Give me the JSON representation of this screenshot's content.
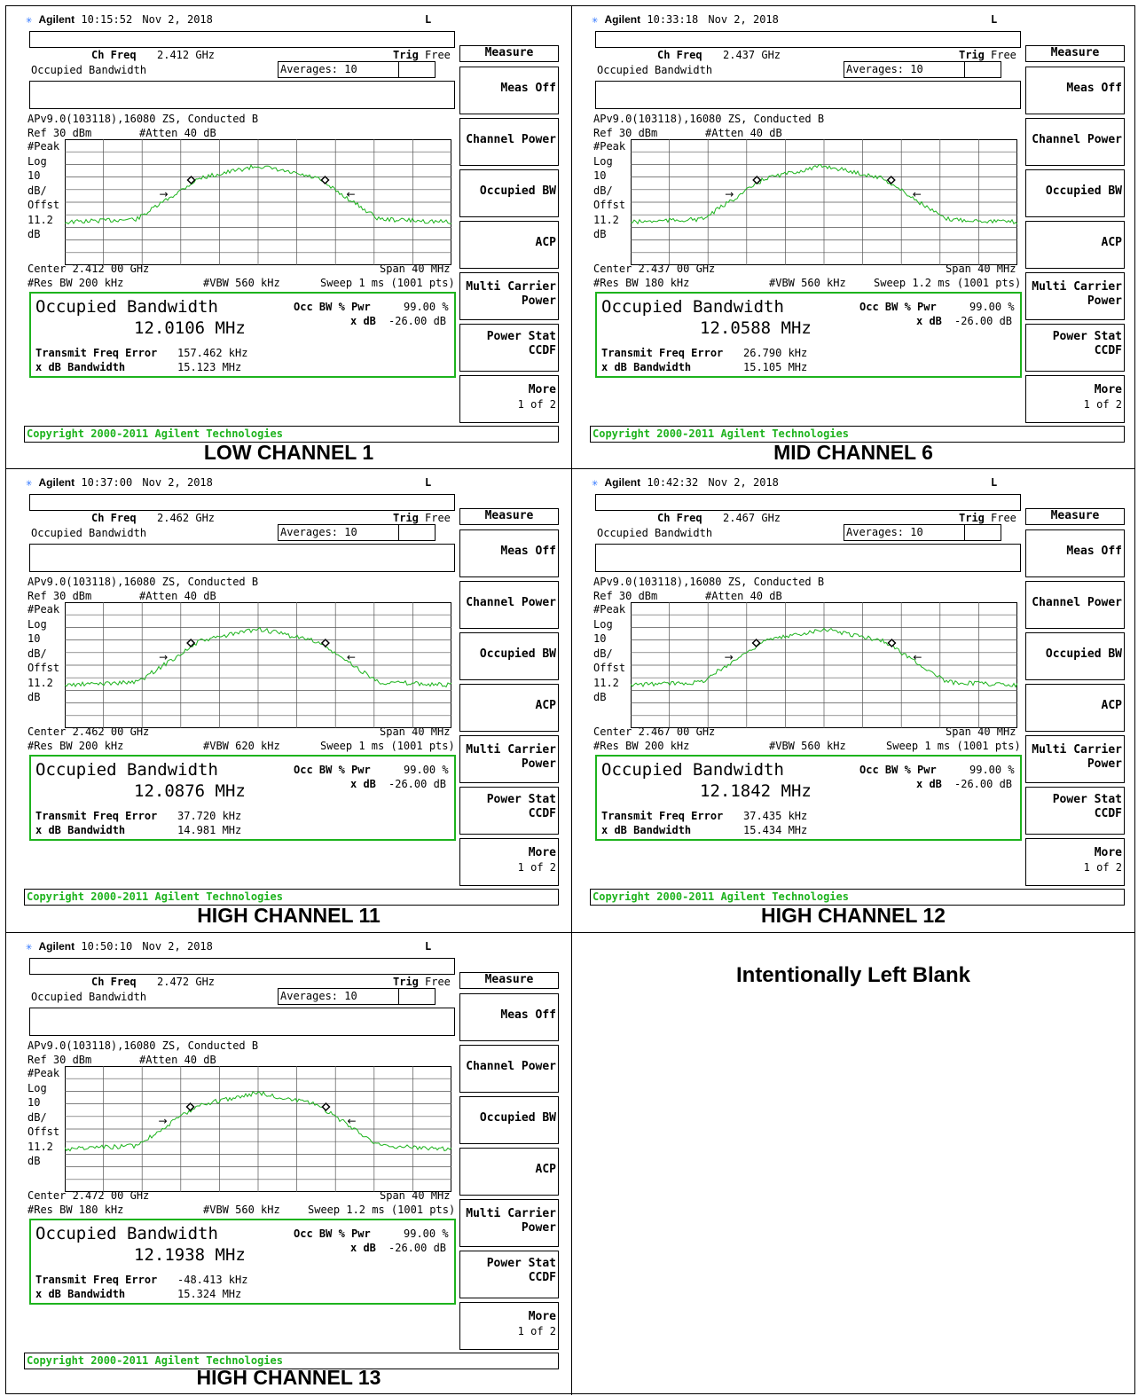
{
  "colors": {
    "trace": "#1db31d",
    "accent_green": "#1db31d",
    "grid": "#555555"
  },
  "panels": [
    {
      "caption": "LOW CHANNEL 1",
      "brand": "Agilent",
      "time": "10:15:52",
      "date": "Nov 2, 2018",
      "mode": "L",
      "ch_freq_label": "Ch Freq",
      "ch_freq": "2.412 GHz",
      "trig_label": "Trig",
      "trig": "Free",
      "meas_name": "Occupied Bandwidth",
      "averages": "Averages: 10",
      "setup": "APv9.0(103118),16080 ZS, Conducted B",
      "ref": "Ref 30 dBm",
      "atten": "#Atten 40 dB",
      "left_scale": [
        "#Peak",
        "Log",
        "10",
        "dB/",
        "Offst",
        "11.2",
        "dB"
      ],
      "center": "Center 2.412 00 GHz",
      "span": "Span 40 MHz",
      "res_bw": "#Res BW 200 kHz",
      "vbw": "#VBW 560 kHz",
      "sweep": "Sweep 1 ms (1001 pts)",
      "result_title": "Occupied Bandwidth",
      "result_value": "12.0106 MHz",
      "occ_label": "Occ BW % Pwr",
      "occ_value": "99.00 %",
      "xdb_label": "x dB",
      "xdb_value": "-26.00 dB",
      "tfe_label": "Transmit Freq Error",
      "tfe_value": "157.462 kHz",
      "xdbbw_label": "x dB Bandwidth",
      "xdbbw_value": "15.123 MHz",
      "copyright": "Copyright 2000-2011 Agilent Technologies",
      "softkeys": {
        "measure": "Measure",
        "meas_off": "Meas Off",
        "channel_power": "Channel Power",
        "occupied_bw": "Occupied BW",
        "acp": "ACP",
        "multi_1": "Multi Carrier",
        "multi_2": "Power",
        "pstat_1": "Power Stat",
        "pstat_2": "CCDF",
        "more": "More",
        "more_page": "1 of 2"
      }
    },
    {
      "caption": "MID CHANNEL 6",
      "brand": "Agilent",
      "time": "10:33:18",
      "date": "Nov 2, 2018",
      "mode": "L",
      "ch_freq_label": "Ch Freq",
      "ch_freq": "2.437 GHz",
      "trig_label": "Trig",
      "trig": "Free",
      "meas_name": "Occupied Bandwidth",
      "averages": "Averages: 10",
      "setup": "APv9.0(103118),16080 ZS, Conducted B",
      "ref": "Ref 30 dBm",
      "atten": "#Atten 40 dB",
      "left_scale": [
        "#Peak",
        "Log",
        "10",
        "dB/",
        "Offst",
        "11.2",
        "dB"
      ],
      "center": "Center 2.437 00 GHz",
      "span": "Span 40 MHz",
      "res_bw": "#Res BW 180 kHz",
      "vbw": "#VBW 560 kHz",
      "sweep": "Sweep 1.2 ms (1001 pts)",
      "result_title": "Occupied Bandwidth",
      "result_value": "12.0588 MHz",
      "occ_label": "Occ BW % Pwr",
      "occ_value": "99.00 %",
      "xdb_label": "x dB",
      "xdb_value": "-26.00 dB",
      "tfe_label": "Transmit Freq Error",
      "tfe_value": "26.790 kHz",
      "xdbbw_label": "x dB Bandwidth",
      "xdbbw_value": "15.105 MHz",
      "copyright": "Copyright 2000-2011 Agilent Technologies",
      "softkeys": {
        "measure": "Measure",
        "meas_off": "Meas Off",
        "channel_power": "Channel Power",
        "occupied_bw": "Occupied BW",
        "acp": "ACP",
        "multi_1": "Multi Carrier",
        "multi_2": "Power",
        "pstat_1": "Power Stat",
        "pstat_2": "CCDF",
        "more": "More",
        "more_page": "1 of 2"
      }
    },
    {
      "caption": "HIGH CHANNEL 11",
      "brand": "Agilent",
      "time": "10:37:00",
      "date": "Nov 2, 2018",
      "mode": "L",
      "ch_freq_label": "Ch Freq",
      "ch_freq": "2.462 GHz",
      "trig_label": "Trig",
      "trig": "Free",
      "meas_name": "Occupied Bandwidth",
      "averages": "Averages: 10",
      "setup": "APv9.0(103118),16080 ZS, Conducted B",
      "ref": "Ref 30 dBm",
      "atten": "#Atten 40 dB",
      "left_scale": [
        "#Peak",
        "Log",
        "10",
        "dB/",
        "Offst",
        "11.2",
        "dB"
      ],
      "center": "Center 2.462 00 GHz",
      "span": "Span 40 MHz",
      "res_bw": "#Res BW 200 kHz",
      "vbw": "#VBW 620 kHz",
      "sweep": "Sweep 1 ms (1001 pts)",
      "result_title": "Occupied Bandwidth",
      "result_value": "12.0876 MHz",
      "occ_label": "Occ BW % Pwr",
      "occ_value": "99.00 %",
      "xdb_label": "x dB",
      "xdb_value": "-26.00 dB",
      "tfe_label": "Transmit Freq Error",
      "tfe_value": "37.720 kHz",
      "xdbbw_label": "x dB Bandwidth",
      "xdbbw_value": "14.981 MHz",
      "copyright": "Copyright 2000-2011 Agilent Technologies",
      "softkeys": {
        "measure": "Measure",
        "meas_off": "Meas Off",
        "channel_power": "Channel Power",
        "occupied_bw": "Occupied BW",
        "acp": "ACP",
        "multi_1": "Multi Carrier",
        "multi_2": "Power",
        "pstat_1": "Power Stat",
        "pstat_2": "CCDF",
        "more": "More",
        "more_page": "1 of 2"
      }
    },
    {
      "caption": "HIGH CHANNEL 12",
      "brand": "Agilent",
      "time": "10:42:32",
      "date": "Nov 2, 2018",
      "mode": "L",
      "ch_freq_label": "Ch Freq",
      "ch_freq": "2.467 GHz",
      "trig_label": "Trig",
      "trig": "Free",
      "meas_name": "Occupied Bandwidth",
      "averages": "Averages: 10",
      "setup": "APv9.0(103118),16080 ZS, Conducted B",
      "ref": "Ref 30 dBm",
      "atten": "#Atten 40 dB",
      "left_scale": [
        "#Peak",
        "Log",
        "10",
        "dB/",
        "Offst",
        "11.2",
        "dB"
      ],
      "center": "Center 2.467 00 GHz",
      "span": "Span 40 MHz",
      "res_bw": "#Res BW 200 kHz",
      "vbw": "#VBW 560 kHz",
      "sweep": "Sweep 1 ms (1001 pts)",
      "result_title": "Occupied Bandwidth",
      "result_value": "12.1842 MHz",
      "occ_label": "Occ BW % Pwr",
      "occ_value": "99.00 %",
      "xdb_label": "x dB",
      "xdb_value": "-26.00 dB",
      "tfe_label": "Transmit Freq Error",
      "tfe_value": "37.435 kHz",
      "xdbbw_label": "x dB Bandwidth",
      "xdbbw_value": "15.434 MHz",
      "copyright": "Copyright 2000-2011 Agilent Technologies",
      "softkeys": {
        "measure": "Measure",
        "meas_off": "Meas Off",
        "channel_power": "Channel Power",
        "occupied_bw": "Occupied BW",
        "acp": "ACP",
        "multi_1": "Multi Carrier",
        "multi_2": "Power",
        "pstat_1": "Power Stat",
        "pstat_2": "CCDF",
        "more": "More",
        "more_page": "1 of 2"
      }
    },
    {
      "caption": "HIGH CHANNEL 13",
      "brand": "Agilent",
      "time": "10:50:10",
      "date": "Nov 2, 2018",
      "mode": "L",
      "ch_freq_label": "Ch Freq",
      "ch_freq": "2.472 GHz",
      "trig_label": "Trig",
      "trig": "Free",
      "meas_name": "Occupied Bandwidth",
      "averages": "Averages: 10",
      "setup": "APv9.0(103118),16080 ZS, Conducted B",
      "ref": "Ref 30 dBm",
      "atten": "#Atten 40 dB",
      "left_scale": [
        "#Peak",
        "Log",
        "10",
        "dB/",
        "Offst",
        "11.2",
        "dB"
      ],
      "center": "Center 2.472 00 GHz",
      "span": "Span 40 MHz",
      "res_bw": "#Res BW 180 kHz",
      "vbw": "#VBW 560 kHz",
      "sweep": "Sweep 1.2 ms (1001 pts)",
      "result_title": "Occupied Bandwidth",
      "result_value": "12.1938 MHz",
      "occ_label": "Occ BW % Pwr",
      "occ_value": "99.00 %",
      "xdb_label": "x dB",
      "xdb_value": "-26.00 dB",
      "tfe_label": "Transmit Freq Error",
      "tfe_value": "-48.413 kHz",
      "xdbbw_label": "x dB Bandwidth",
      "xdbbw_value": "15.324 MHz",
      "copyright": "Copyright 2000-2011 Agilent Technologies",
      "softkeys": {
        "measure": "Measure",
        "meas_off": "Meas Off",
        "channel_power": "Channel Power",
        "occupied_bw": "Occupied BW",
        "acp": "ACP",
        "multi_1": "Multi Carrier",
        "multi_2": "Power",
        "pstat_1": "Power Stat",
        "pstat_2": "CCDF",
        "more": "More",
        "more_page": "1 of 2"
      }
    }
  ],
  "blank_cell": {
    "text": "Intentionally Left Blank"
  },
  "chart_data": [
    {
      "type": "line",
      "x_center_ghz": 2.412,
      "span_mhz": 40,
      "ref_dbm": 30,
      "db_per_div": 10,
      "obw_mhz": 12.0106,
      "xdb_bw_mhz": 15.123,
      "freq_error_khz": 157.462
    },
    {
      "type": "line",
      "x_center_ghz": 2.437,
      "span_mhz": 40,
      "ref_dbm": 30,
      "db_per_div": 10,
      "obw_mhz": 12.0588,
      "xdb_bw_mhz": 15.105,
      "freq_error_khz": 26.79
    },
    {
      "type": "line",
      "x_center_ghz": 2.462,
      "span_mhz": 40,
      "ref_dbm": 30,
      "db_per_div": 10,
      "obw_mhz": 12.0876,
      "xdb_bw_mhz": 14.981,
      "freq_error_khz": 37.72
    },
    {
      "type": "line",
      "x_center_ghz": 2.467,
      "span_mhz": 40,
      "ref_dbm": 30,
      "db_per_div": 10,
      "obw_mhz": 12.1842,
      "xdb_bw_mhz": 15.434,
      "freq_error_khz": 37.435
    },
    {
      "type": "line",
      "x_center_ghz": 2.472,
      "span_mhz": 40,
      "ref_dbm": 30,
      "db_per_div": 10,
      "obw_mhz": 12.1938,
      "xdb_bw_mhz": 15.324,
      "freq_error_khz": -48.413
    }
  ]
}
